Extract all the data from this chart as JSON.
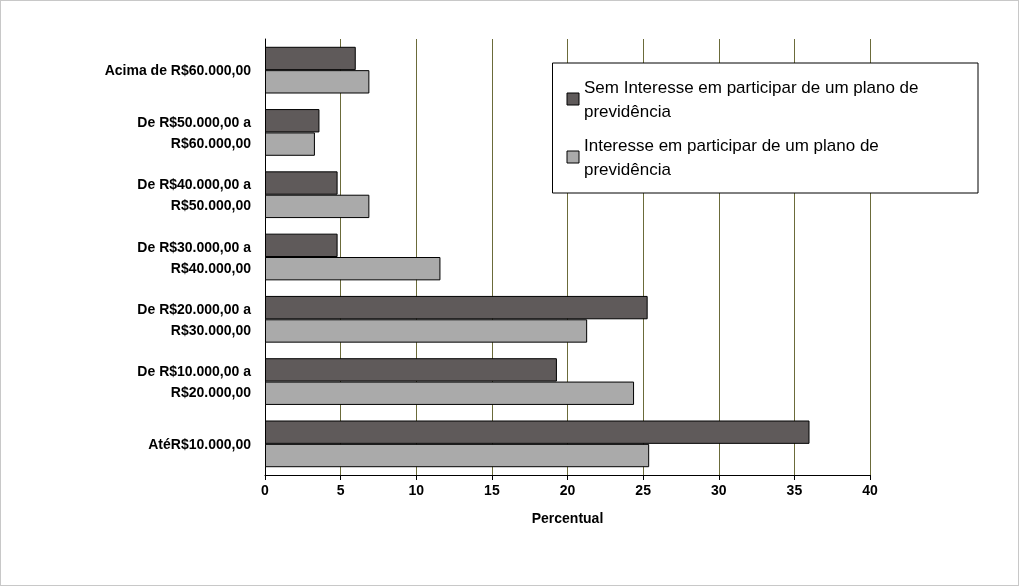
{
  "chart_data": {
    "type": "bar",
    "orientation": "horizontal",
    "xlabel": "Percentual",
    "categories": [
      "Acima de R$60.000,00",
      "De R$50.000,00 a\nR$60.000,00",
      "De R$40.000,00 a\nR$50.000,00",
      "De R$30.000,00 a\nR$40.000,00",
      "De R$20.000,00 a\nR$30.000,00",
      "De R$10.000,00 a\nR$20.000,00",
      "AtéR$10.000,00"
    ],
    "series": [
      {
        "name": "Sem Interesse em participar de um plano de previdência",
        "color": "#5f5a5a",
        "values": [
          6.0,
          3.6,
          4.8,
          4.8,
          25.3,
          19.3,
          36.0
        ]
      },
      {
        "name": "Interesse em participar de um plano de previdência",
        "color": "#aaaaaa",
        "values": [
          6.9,
          3.3,
          6.9,
          11.6,
          21.3,
          24.4,
          25.4
        ]
      }
    ],
    "xlim": [
      0,
      40
    ],
    "xticks": [
      0,
      5,
      10,
      15,
      20,
      25,
      30,
      35,
      40
    ],
    "grid": "x",
    "legend": "top right"
  }
}
